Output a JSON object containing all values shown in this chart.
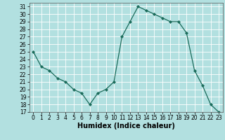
{
  "x": [
    0,
    1,
    2,
    3,
    4,
    5,
    6,
    7,
    8,
    9,
    10,
    11,
    12,
    13,
    14,
    15,
    16,
    17,
    18,
    19,
    20,
    21,
    22,
    23
  ],
  "y": [
    25,
    23,
    22.5,
    21.5,
    21,
    20,
    19.5,
    18,
    19.5,
    20,
    21,
    27,
    29,
    31,
    30.5,
    30,
    29.5,
    29,
    29,
    27.5,
    22.5,
    20.5,
    18,
    17
  ],
  "line_color": "#1a6b5a",
  "marker": "D",
  "marker_size": 2,
  "bg_color": "#b2e0e0",
  "grid_color": "#ffffff",
  "xlabel": "Humidex (Indice chaleur)",
  "xlabel_fontsize": 7,
  "xlim": [
    -0.5,
    23.5
  ],
  "ylim": [
    17,
    31.5
  ],
  "yticks": [
    17,
    18,
    19,
    20,
    21,
    22,
    23,
    24,
    25,
    26,
    27,
    28,
    29,
    30,
    31
  ],
  "xticks": [
    0,
    1,
    2,
    3,
    4,
    5,
    6,
    7,
    8,
    9,
    10,
    11,
    12,
    13,
    14,
    15,
    16,
    17,
    18,
    19,
    20,
    21,
    22,
    23
  ],
  "tick_fontsize": 5.5
}
